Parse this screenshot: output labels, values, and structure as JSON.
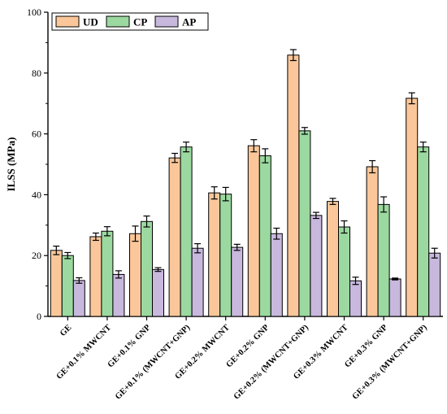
{
  "chart_data": {
    "type": "bar",
    "ylabel": "ILSS (MPa)",
    "ylim": [
      0,
      100
    ],
    "yticks": [
      0,
      20,
      40,
      60,
      80,
      100
    ],
    "categories": [
      "GE",
      "GE+0.1% MWCNT",
      "GE+0.1% GNP",
      "GE+0.1% (MWCNT+GNP)",
      "GE+0.2% MWCNT",
      "GE+0.2% GNP",
      "GE+0.2% (MWCNT+GNP)",
      "GE+0.3% MWCNT",
      "GE+0.3% GNP",
      "GE+0.3% (MWCNT+GNP)"
    ],
    "series": [
      {
        "name": "UD",
        "color": "#FBC79A",
        "values": [
          21.7,
          26.2,
          27.2,
          52.1,
          40.6,
          56.1,
          85.9,
          37.8,
          49.2,
          71.7
        ],
        "errors": [
          1.4,
          1.2,
          2.5,
          1.5,
          2.0,
          2.0,
          1.8,
          1.0,
          2.0,
          1.8
        ]
      },
      {
        "name": "CP",
        "color": "#9BD9A0",
        "values": [
          20.0,
          28.0,
          31.2,
          55.7,
          40.2,
          52.8,
          61.0,
          29.4,
          36.8,
          55.7
        ],
        "errors": [
          1.0,
          1.5,
          1.8,
          1.6,
          2.2,
          2.3,
          1.1,
          2.0,
          2.5,
          1.6
        ]
      },
      {
        "name": "AP",
        "color": "#C8B8DD",
        "values": [
          11.8,
          13.8,
          15.4,
          22.4,
          22.7,
          27.2,
          33.2,
          11.7,
          12.3,
          20.8
        ],
        "errors": [
          0.9,
          1.2,
          0.6,
          1.5,
          1.0,
          1.8,
          1.0,
          1.2,
          0.3,
          1.6
        ]
      }
    ],
    "legend_position": "top-left",
    "grid": false
  }
}
